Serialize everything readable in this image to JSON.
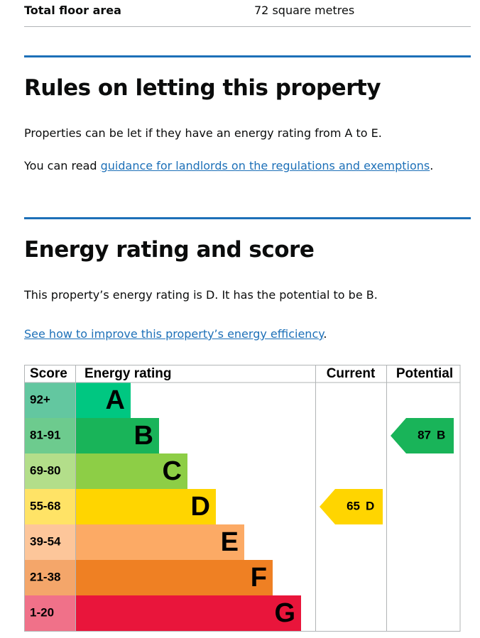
{
  "summary": {
    "label": "Total floor area",
    "value": "72 square metres"
  },
  "rules": {
    "heading": "Rules on letting this property",
    "paragraph": "Properties can be let if they have an energy rating from A to E.",
    "guidance": {
      "prefix": "You can read ",
      "link": "guidance for landlords on the regulations and exemptions",
      "suffix": "."
    }
  },
  "energy": {
    "heading": "Energy rating and score",
    "paragraph": "This property’s energy rating is D. It has the potential to be B.",
    "improve": {
      "link": "See how to improve this property’s energy efficiency",
      "suffix": "."
    },
    "table": {
      "headers": [
        "Score",
        "Energy rating",
        "Current",
        "Potential"
      ],
      "bands": [
        {
          "score": "92+",
          "letter": "A",
          "color": "#00c781",
          "score_color": "#63c7a0"
        },
        {
          "score": "81-91",
          "letter": "B",
          "color": "#19b459",
          "score_color": "#6dcb8e"
        },
        {
          "score": "69-80",
          "letter": "C",
          "color": "#8dce46",
          "score_color": "#b3de8a"
        },
        {
          "score": "55-68",
          "letter": "D",
          "color": "#ffd500",
          "score_color": "#ffe366"
        },
        {
          "score": "39-54",
          "letter": "E",
          "color": "#fcaa65",
          "score_color": "#fdc69a"
        },
        {
          "score": "21-38",
          "letter": "F",
          "color": "#ef8023",
          "score_color": "#f4a66a"
        },
        {
          "score": "1-20",
          "letter": "G",
          "color": "#e9153b",
          "score_color": "#f07189"
        }
      ],
      "current": {
        "score": 65,
        "band": "D"
      },
      "potential": {
        "score": 87,
        "band": "B"
      }
    }
  }
}
